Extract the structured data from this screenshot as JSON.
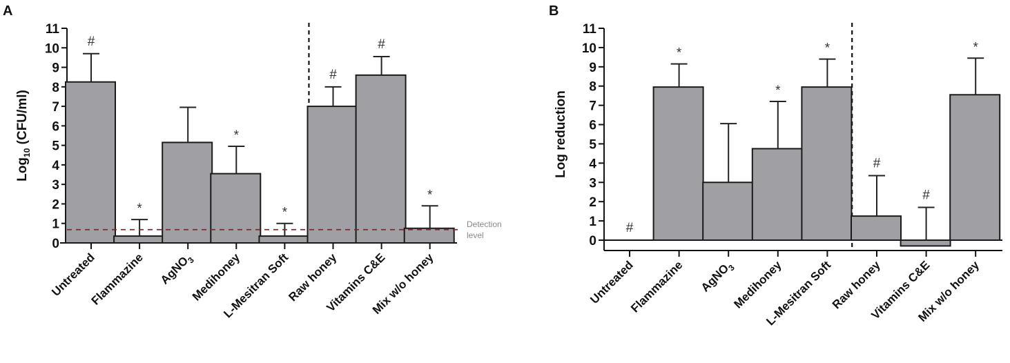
{
  "colors": {
    "bar_fill": "#a0a0a4",
    "bar_stroke": "#1a1a1a",
    "detection_line": "#7a2a2a"
  },
  "chart_data": [
    {
      "panel": "A",
      "type": "bar",
      "ylabel_main": "Log",
      "ylabel_sub": "10",
      "ylabel_rest": " (CFU/ml)",
      "ylim": [
        0,
        11
      ],
      "yticks": [
        "0",
        "1",
        "2",
        "3",
        "4",
        "5",
        "6",
        "7",
        "8",
        "9",
        "10",
        "11"
      ],
      "categories": [
        "Untreated",
        "Flammazine",
        "AgNO3",
        "Medihoney",
        "L-Mesitran Soft",
        "Raw honey",
        "Vitamins C&E",
        "Mix w/o honey"
      ],
      "values": [
        8.25,
        0.35,
        5.15,
        3.55,
        0.35,
        7.0,
        8.6,
        0.75
      ],
      "error_upper": [
        9.7,
        1.2,
        6.95,
        4.95,
        1.0,
        8.0,
        9.55,
        1.9
      ],
      "annotations": [
        "#",
        "*",
        "",
        "*",
        "*",
        "#",
        "#",
        "*"
      ],
      "divider_after_index": 4,
      "detection_level": {
        "value": 0.68,
        "label_line1": "Detection",
        "label_line2": "level"
      }
    },
    {
      "panel": "B",
      "type": "bar",
      "ylabel": "Log reduction",
      "ylim": [
        -0.55,
        11
      ],
      "yticks": [
        "0",
        "1",
        "2",
        "3",
        "4",
        "5",
        "6",
        "7",
        "8",
        "9",
        "10",
        "11"
      ],
      "categories": [
        "Untreated",
        "Flammazine",
        "AgNO3",
        "Medihoney",
        "L-Mesitran Soft",
        "Raw honey",
        "Vitamins C&E",
        "Mix w/o honey"
      ],
      "values": [
        0,
        7.95,
        3.0,
        4.75,
        7.95,
        1.25,
        -0.3,
        7.55
      ],
      "error_upper": [
        null,
        9.15,
        6.05,
        7.2,
        9.4,
        3.35,
        1.7,
        9.45
      ],
      "annotations": [
        "#",
        "*",
        "",
        "*",
        "*",
        "#",
        "#",
        "*"
      ],
      "divider_after_index": 4
    }
  ]
}
